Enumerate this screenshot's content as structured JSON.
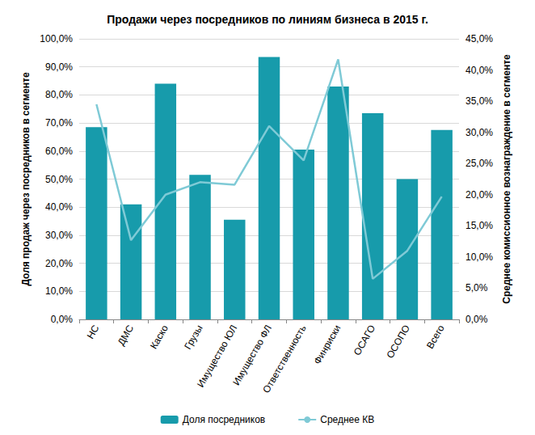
{
  "chart_data": {
    "type": "bar",
    "title": "Продажи через посредников по линиям бизнеса в 2015 г.",
    "y_label": "Доля продаж через посредников в сегменте",
    "y2_label": "Среднее комиссионное вознаграждение в сегменте",
    "categories": [
      "НС",
      "ДМС",
      "Каско",
      "Грузы",
      "Имущество ЮЛ",
      "Имущество ФЛ",
      "Ответственность",
      "Финриски",
      "ОСАГО",
      "ОСОПО",
      "Всего"
    ],
    "series": [
      {
        "name": "Доля посредников",
        "type": "bar",
        "color": "#179bab",
        "values": [
          68.5,
          41,
          84,
          51.5,
          35.5,
          93.5,
          60.5,
          83,
          73.5,
          50,
          67.5
        ]
      },
      {
        "name": "Среднее КВ",
        "type": "line",
        "axis": "y2",
        "color": "#7fcad6",
        "values": [
          34.5,
          12.7,
          20,
          22,
          21.6,
          31,
          25.5,
          41.7,
          6.5,
          11,
          19.7
        ]
      }
    ],
    "ylim": [
      0,
      100
    ],
    "yticks": [
      {
        "value": 0,
        "label": "0,0%"
      },
      {
        "value": 10,
        "label": "10,0%"
      },
      {
        "value": 20,
        "label": "20,0%"
      },
      {
        "value": 30,
        "label": "30,0%"
      },
      {
        "value": 40,
        "label": "40,0%"
      },
      {
        "value": 50,
        "label": "50,0%"
      },
      {
        "value": 60,
        "label": "60,0%"
      },
      {
        "value": 70,
        "label": "70,0%"
      },
      {
        "value": 80,
        "label": "80,0%"
      },
      {
        "value": 90,
        "label": "90,0%"
      },
      {
        "value": 100,
        "label": "100,0%"
      }
    ],
    "y2lim": [
      0,
      45
    ],
    "y2ticks": [
      {
        "value": 0,
        "label": "0,0%"
      },
      {
        "value": 5,
        "label": "5,0%"
      },
      {
        "value": 10,
        "label": "10,0%"
      },
      {
        "value": 15,
        "label": "15,0%"
      },
      {
        "value": 20,
        "label": "20,0%"
      },
      {
        "value": 25,
        "label": "25,0%"
      },
      {
        "value": 30,
        "label": "30,0%"
      },
      {
        "value": 35,
        "label": "35,0%"
      },
      {
        "value": 40,
        "label": "40,0%"
      },
      {
        "value": 45,
        "label": "45,0%"
      }
    ],
    "grid": true,
    "legend": "bottom"
  }
}
